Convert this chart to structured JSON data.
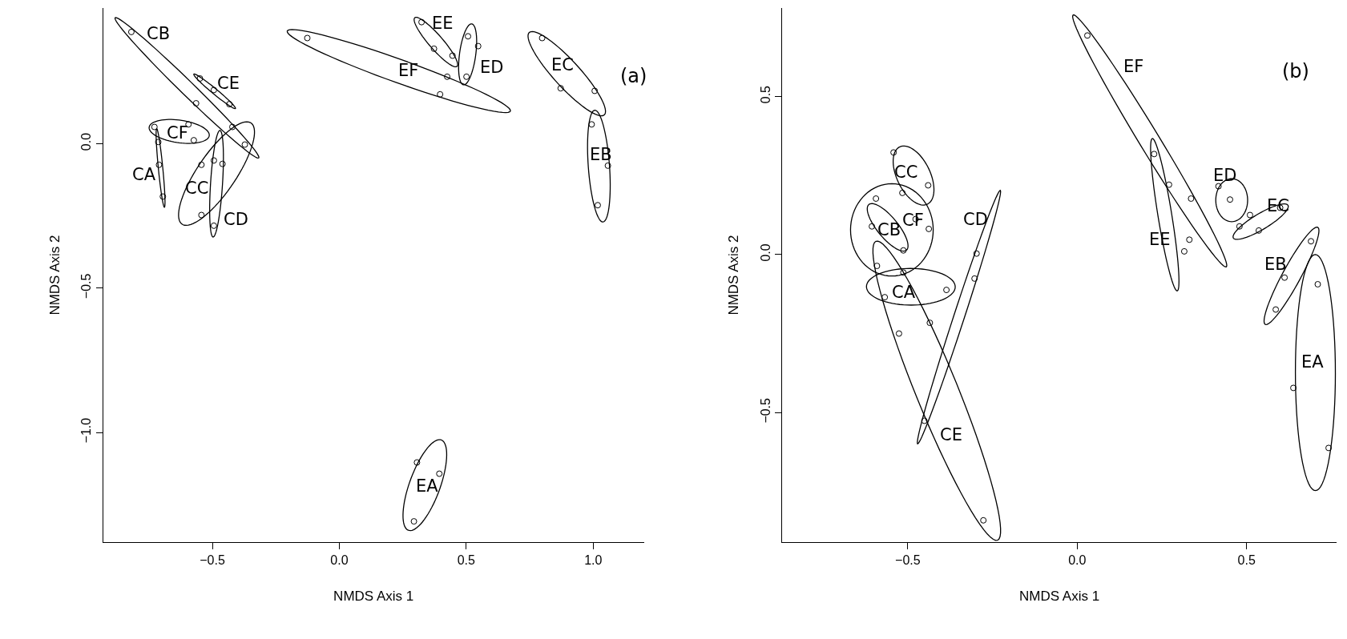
{
  "chart_data": [
    {
      "type": "scatter",
      "xlabel": "NMDS Axis 1",
      "ylabel": "NMDS Axis 2",
      "xlim": [
        -0.93,
        1.2
      ],
      "ylim": [
        -1.38,
        0.47
      ],
      "xticks": [
        {
          "value": -0.5,
          "label": "−0.5"
        },
        {
          "value": 0.0,
          "label": "0.0"
        },
        {
          "value": 0.5,
          "label": "0.5"
        },
        {
          "value": 1.0,
          "label": "1.0"
        }
      ],
      "yticks": [
        {
          "value": -1.0,
          "label": "−1.0"
        },
        {
          "value": -0.5,
          "label": "−0.5"
        },
        {
          "value": 0.0,
          "label": "0.0"
        }
      ],
      "marker": "circle",
      "series": [
        {
          "color": "#000000",
          "x": [
            -0.819,
            -0.564,
            -0.421,
            -0.372,
            -0.549,
            -0.494,
            -0.433,
            -0.728,
            -0.594,
            -0.573,
            -0.713,
            -0.71,
            -0.695,
            -0.543,
            -0.543,
            -0.46,
            -0.494,
            -0.494,
            -0.126,
            0.425,
            0.397,
            0.324,
            0.373,
            0.446,
            0.507,
            0.547,
            0.501,
            0.799,
            0.872,
            1.006,
            0.994,
            1.058,
            1.018,
            0.306,
            0.394,
            0.294
          ],
          "values": [
            0.387,
            0.14,
            0.058,
            -0.003,
            0.226,
            0.186,
            0.137,
            0.058,
            0.067,
            0.012,
            0.006,
            -0.073,
            -0.183,
            -0.073,
            -0.247,
            -0.07,
            -0.058,
            -0.284,
            0.366,
            0.232,
            0.171,
            0.421,
            0.329,
            0.305,
            0.372,
            0.338,
            0.232,
            0.366,
            0.192,
            0.183,
            0.067,
            -0.076,
            -0.213,
            -1.104,
            -1.143,
            -1.308
          ]
        }
      ],
      "annotations": [
        "CB",
        "CE",
        "CF",
        "CA",
        "CC",
        "CD",
        "EF",
        "EE",
        "ED",
        "EC",
        "EB",
        "EA",
        "(a)"
      ]
    },
    {
      "type": "scatter",
      "xlabel": "NMDS Axis 1",
      "ylabel": "NMDS Axis 2",
      "xlim": [
        -0.87,
        0.765
      ],
      "ylim": [
        -0.91,
        0.78
      ],
      "xticks": [
        {
          "value": -0.5,
          "label": "−0.5"
        },
        {
          "value": 0.0,
          "label": "0.0"
        },
        {
          "value": 0.5,
          "label": "0.5"
        }
      ],
      "yticks": [
        {
          "value": -0.5,
          "label": "−0.5"
        },
        {
          "value": 0.0,
          "label": "0.0"
        },
        {
          "value": 0.5,
          "label": "0.5"
        }
      ],
      "marker": "circle",
      "series": [
        {
          "color": "#000000",
          "x": [
            -0.542,
            -0.594,
            -0.516,
            -0.44,
            -0.477,
            -0.438,
            -0.606,
            -0.513,
            -0.591,
            -0.568,
            -0.513,
            -0.386,
            -0.435,
            -0.526,
            -0.297,
            -0.303,
            -0.451,
            -0.277,
            0.03,
            0.227,
            0.271,
            0.336,
            0.331,
            0.316,
            0.417,
            0.451,
            0.51,
            0.479,
            0.536,
            0.599,
            0.612,
            0.586,
            0.69,
            0.71,
            0.638,
            0.742
          ],
          "values": [
            0.323,
            0.177,
            0.195,
            0.219,
            0.112,
            0.081,
            0.089,
            0.013,
            -0.036,
            -0.135,
            -0.057,
            -0.112,
            -0.216,
            -0.25,
            0.003,
            -0.076,
            -0.526,
            -0.841,
            0.693,
            0.318,
            0.221,
            0.177,
            0.047,
            0.01,
            0.216,
            0.174,
            0.125,
            0.089,
            0.076,
            0.148,
            -0.073,
            -0.174,
            0.042,
            -0.094,
            -0.422,
            -0.612
          ]
        }
      ],
      "annotations": [
        "EF",
        "ED",
        "EC",
        "EE",
        "EB",
        "EA",
        "CC",
        "CF",
        "CB",
        "CA",
        "CD",
        "CE",
        "(b)"
      ]
    }
  ]
}
